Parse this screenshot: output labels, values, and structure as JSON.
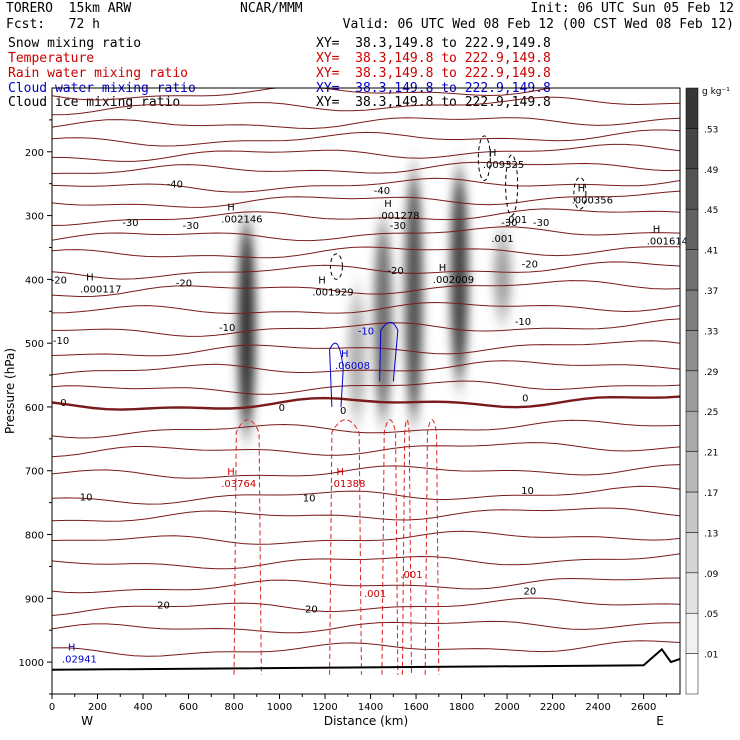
{
  "header": {
    "model": "TORERO  15km ARW",
    "org": "NCAR/MMM",
    "init": "Init: 06 UTC Sun 05 Feb 12",
    "fcst": "Fcst:   72 h",
    "valid": "Valid: 06 UTC Wed 08 Feb 12 (00 CST Wed 08 Feb 12)"
  },
  "fields": [
    {
      "label": "Snow mixing ratio",
      "color": "#000000",
      "xy": "XY=  38.3,149.8 to 222.9,149.8"
    },
    {
      "label": "Temperature",
      "color": "#cc0000",
      "xy": "XY=  38.3,149.8 to 222.9,149.8"
    },
    {
      "label": "Rain water mixing ratio",
      "color": "#cc0000",
      "xy": "XY=  38.3,149.8 to 222.9,149.8"
    },
    {
      "label": "Cloud water mixing ratio",
      "color": "#0000cc",
      "xy": "XY=  38.3,149.8 to 222.9,149.8"
    },
    {
      "label": "Cloud ice mixing ratio",
      "color": "#000000",
      "xy": "XY=  38.3,149.8 to 222.9,149.8"
    }
  ],
  "chart_data": {
    "type": "heatmap",
    "xlabel": "Distance (km)",
    "ylabel": "Pressure (hPa)",
    "xlim": [
      0,
      2760
    ],
    "ylim": [
      1050,
      100
    ],
    "x_ticks": [
      0,
      200,
      400,
      600,
      800,
      1000,
      1200,
      1400,
      1600,
      1800,
      2000,
      2200,
      2400,
      2600
    ],
    "y_ticks": [
      200,
      300,
      400,
      500,
      600,
      700,
      800,
      900,
      1000
    ],
    "x_end_labels": {
      "left": "W",
      "right": "E"
    },
    "colorbar": {
      "unit": "g kg⁻¹",
      "levels": [
        ".01",
        ".05",
        ".09",
        ".13",
        ".17",
        ".21",
        ".25",
        ".29",
        ".33",
        ".37",
        ".41",
        ".45",
        ".49",
        ".53"
      ]
    },
    "snow_columns": [
      {
        "x": 855,
        "p_top": 310,
        "p_bottom": 640,
        "peak": 0.53
      },
      {
        "x": 1340,
        "p_top": 420,
        "p_bottom": 620,
        "peak": 0.2
      },
      {
        "x": 1455,
        "p_top": 310,
        "p_bottom": 620,
        "peak": 0.38
      },
      {
        "x": 1590,
        "p_top": 230,
        "p_bottom": 620,
        "peak": 0.45
      },
      {
        "x": 1790,
        "p_top": 230,
        "p_bottom": 560,
        "peak": 0.49
      },
      {
        "x": 1980,
        "p_top": 330,
        "p_bottom": 460,
        "peak": 0.25
      }
    ],
    "temperature_isotherm_labels": [
      {
        "value": "-40",
        "x": 540,
        "p": 250
      },
      {
        "value": "-40",
        "x": 1450,
        "p": 260
      },
      {
        "value": "-30",
        "x": 345,
        "p": 310
      },
      {
        "value": "-30",
        "x": 610,
        "p": 315
      },
      {
        "value": "-30",
        "x": 1520,
        "p": 315
      },
      {
        "value": "-30",
        "x": 2010,
        "p": 310
      },
      {
        "value": "-30",
        "x": 2150,
        "p": 310
      },
      {
        "value": "-20",
        "x": 30,
        "p": 400
      },
      {
        "value": "-20",
        "x": 580,
        "p": 405
      },
      {
        "value": "-20",
        "x": 1510,
        "p": 385
      },
      {
        "value": "-20",
        "x": 2100,
        "p": 375
      },
      {
        "value": "-10",
        "x": 770,
        "p": 475
      },
      {
        "value": "-10",
        "x": 40,
        "p": 495
      },
      {
        "value": "-10",
        "x": 2070,
        "p": 465
      },
      {
        "value": "0",
        "x": 50,
        "p": 592
      },
      {
        "value": "0",
        "x": 1010,
        "p": 600
      },
      {
        "value": "0",
        "x": 1280,
        "p": 605
      },
      {
        "value": "0",
        "x": 2080,
        "p": 585
      },
      {
        "value": "10",
        "x": 150,
        "p": 740
      },
      {
        "value": "10",
        "x": 1130,
        "p": 742
      },
      {
        "value": "10",
        "x": 2090,
        "p": 730
      },
      {
        "value": "20",
        "x": 490,
        "p": 910
      },
      {
        "value": "20",
        "x": 1140,
        "p": 916
      },
      {
        "value": "20",
        "x": 2100,
        "p": 888
      }
    ],
    "extrema": [
      {
        "label": "H",
        "value": ".002146",
        "x": 770,
        "p": 295,
        "color": "#000000"
      },
      {
        "label": "H",
        "value": ".000117",
        "x": 150,
        "p": 405,
        "color": "#000000"
      },
      {
        "label": "H",
        "value": ".001929",
        "x": 1170,
        "p": 410,
        "color": "#000000"
      },
      {
        "label": "H",
        "value": ".001278",
        "x": 1460,
        "p": 290,
        "color": "#000000"
      },
      {
        "label": "H",
        "value": ".002009",
        "x": 1700,
        "p": 390,
        "color": "#000000"
      },
      {
        "label": "H",
        "value": ".009325",
        "x": 1920,
        "p": 210,
        "color": "#000000"
      },
      {
        "label": "H",
        "value": ".000356",
        "x": 2310,
        "p": 265,
        "color": "#000000"
      },
      {
        "label": "H",
        "value": ".001614",
        "x": 2640,
        "p": 330,
        "color": "#000000"
      },
      {
        "label": "H",
        "value": ".03764",
        "x": 770,
        "p": 710,
        "color": "#cc0000"
      },
      {
        "label": "H",
        "value": ".01388",
        "x": 1250,
        "p": 710,
        "color": "#cc0000"
      },
      {
        "label": "H",
        "value": ".06008",
        "x": 1270,
        "p": 525,
        "color": "#0000cc"
      },
      {
        "label": "H",
        "value": ".02941",
        "x": 70,
        "p": 985,
        "color": "#0000cc"
      }
    ],
    "contour_labels": [
      {
        "value": ".001",
        "x": 2040,
        "p": 305,
        "color": "#000000"
      },
      {
        "value": ".001",
        "x": 1980,
        "p": 335,
        "color": "#000000"
      },
      {
        "value": ".001",
        "x": 1420,
        "p": 892,
        "color": "#cc0000"
      },
      {
        "value": ".001",
        "x": 1580,
        "p": 862,
        "color": "#cc0000"
      },
      {
        "value": "-10",
        "x": 1380,
        "p": 480,
        "color": "#0000cc"
      }
    ]
  }
}
